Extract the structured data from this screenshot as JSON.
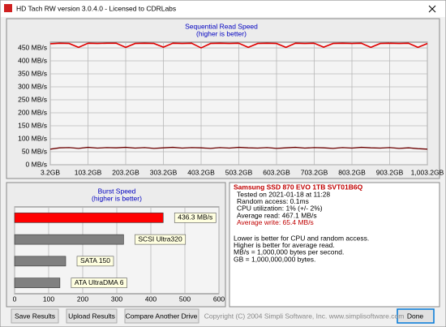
{
  "window": {
    "title": "HD Tach RW version 3.0.4.0 - Licensed to CDRLabs"
  },
  "chart_data": [
    {
      "type": "line",
      "title": "Sequential Read Speed",
      "subtitle": "(higher is better)",
      "x": [
        3.2,
        28.2,
        53.2,
        78.2,
        103.2,
        128.2,
        153.2,
        178.2,
        203.2,
        228.2,
        253.2,
        278.2,
        303.2,
        328.2,
        353.2,
        378.2,
        403.2,
        428.2,
        453.2,
        478.2,
        503.2,
        528.2,
        553.2,
        578.2,
        603.2,
        628.2,
        653.2,
        678.2,
        703.2,
        728.2,
        753.2,
        778.2,
        803.2,
        828.2,
        853.2,
        878.2,
        903.2,
        928.2,
        953.2,
        978.2,
        1003.2
      ],
      "series": [
        {
          "color": "#e00000",
          "values": [
            466,
            468,
            467,
            452,
            468,
            467,
            468,
            468,
            452,
            467,
            468,
            467,
            453,
            468,
            467,
            468,
            450,
            467,
            468,
            467,
            468,
            452,
            467,
            468,
            467,
            452,
            468,
            467,
            468,
            453,
            467,
            468,
            467,
            468,
            452,
            467,
            468,
            467,
            468,
            452,
            467
          ]
        },
        {
          "color": "#6b0000",
          "values": [
            60,
            65,
            66,
            63,
            67,
            64,
            66,
            65,
            67,
            64,
            66,
            63,
            65,
            67,
            64,
            66,
            65,
            63,
            66,
            64,
            67,
            65,
            64,
            66,
            63,
            65,
            67,
            64,
            66,
            65,
            63,
            66,
            64,
            67,
            65,
            64,
            66,
            63,
            65,
            62,
            60
          ]
        }
      ],
      "xlim": [
        3.2,
        1003.2
      ],
      "xticks": [
        {
          "value": 3.2,
          "label": "3.2GB"
        },
        {
          "value": 103.2,
          "label": "103.2GB"
        },
        {
          "value": 203.2,
          "label": "203.2GB"
        },
        {
          "value": 303.2,
          "label": "303.2GB"
        },
        {
          "value": 403.2,
          "label": "403.2GB"
        },
        {
          "value": 503.2,
          "label": "503.2GB"
        },
        {
          "value": 603.2,
          "label": "603.2GB"
        },
        {
          "value": 703.2,
          "label": "703.2GB"
        },
        {
          "value": 803.2,
          "label": "803.2GB"
        },
        {
          "value": 903.2,
          "label": "903.2GB"
        },
        {
          "value": 1003.2,
          "label": "1,003.2GB"
        }
      ],
      "ylim": [
        0,
        472
      ],
      "yticks": [
        {
          "value": 0,
          "label": "0 MB/s"
        },
        {
          "value": 50,
          "label": "50 MB/s"
        },
        {
          "value": 100,
          "label": "100 MB/s"
        },
        {
          "value": 150,
          "label": "150 MB/s"
        },
        {
          "value": 200,
          "label": "200 MB/s"
        },
        {
          "value": 250,
          "label": "250 MB/s"
        },
        {
          "value": 300,
          "label": "300 MB/s"
        },
        {
          "value": 350,
          "label": "350 MB/s"
        },
        {
          "value": 400,
          "label": "400 MB/s"
        },
        {
          "value": 450,
          "label": "450 MB/s"
        }
      ],
      "grid": true
    },
    {
      "type": "hbar",
      "title": "Burst Speed",
      "subtitle": "(higher is better)",
      "categories": [
        null,
        "SCSI Ultra320",
        "SATA 150",
        "ATA UltraDMA 6"
      ],
      "values": [
        436.3,
        320,
        150,
        133
      ],
      "value_labels": [
        "436.3 MB/s",
        null,
        null,
        null
      ],
      "colors": [
        "#ff0000",
        "#808080",
        "#808080",
        "#808080"
      ],
      "xlim": [
        0,
        600
      ],
      "xticks": [
        0,
        100,
        200,
        300,
        400,
        500,
        600
      ],
      "grid": true
    }
  ],
  "info": {
    "drive": "Samsung SSD 870 EVO 1TB SVT01B6Q",
    "lines": [
      "Tested on 2021-01-18 at 11:28",
      "Random access: 0.1ms",
      "CPU utilization: 1% (+/- 2%)",
      "Average read: 467.1 MB/s",
      "Average write: 65.4 MB/s"
    ],
    "notes": [
      "Lower is better for CPU and random access.",
      "Higher is better for average read.",
      "MB/s = 1,000,000 bytes per second.",
      "GB = 1,000,000,000 bytes."
    ]
  },
  "buttons": {
    "save": "Save Results",
    "upload": "Upload Results",
    "compare": "Compare Another Drive",
    "done": "Done"
  },
  "copyright": "Copyright (C) 2004 Simpli Software, Inc. www.simplisoftware.com"
}
